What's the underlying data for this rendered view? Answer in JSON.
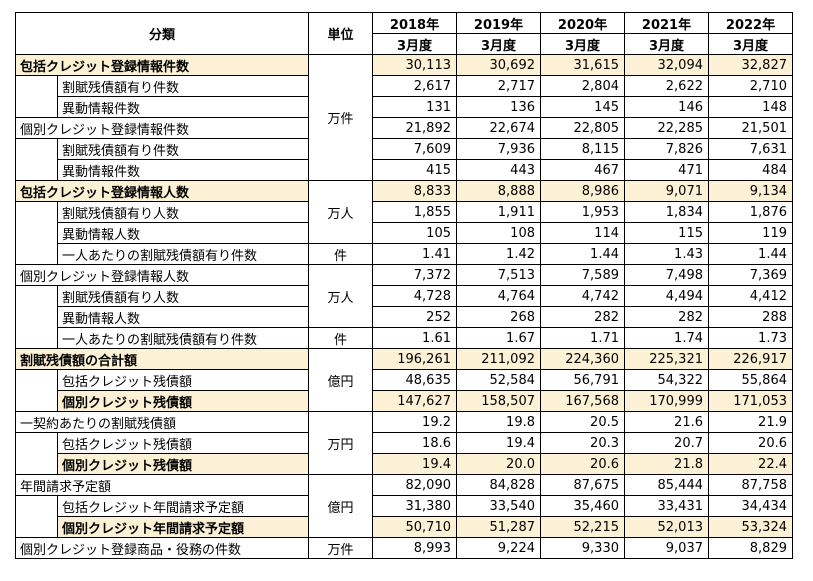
{
  "header": {
    "category": "分類",
    "unit": "単位",
    "years": [
      "2018年",
      "2019年",
      "2020年",
      "2021年",
      "2022年"
    ],
    "period": "3月度"
  },
  "rows": [
    {
      "label": "包括クレジット登録情報件数",
      "level": 0,
      "bold": true,
      "highlight": true,
      "values": [
        "30,113",
        "30,692",
        "31,615",
        "32,094",
        "32,827"
      ]
    },
    {
      "label": "割賦残債額有り件数",
      "level": 1,
      "bold": false,
      "highlight": false,
      "values": [
        "2,617",
        "2,717",
        "2,804",
        "2,622",
        "2,710"
      ]
    },
    {
      "label": "異動情報件数",
      "level": 1,
      "bold": false,
      "highlight": false,
      "values": [
        "131",
        "136",
        "145",
        "146",
        "148"
      ]
    },
    {
      "label": "個別クレジット登録情報件数",
      "level": 0,
      "bold": false,
      "highlight": false,
      "values": [
        "21,892",
        "22,674",
        "22,805",
        "22,285",
        "21,501"
      ]
    },
    {
      "label": "割賦残債額有り件数",
      "level": 1,
      "bold": false,
      "highlight": false,
      "values": [
        "7,609",
        "7,936",
        "8,115",
        "7,826",
        "7,631"
      ]
    },
    {
      "label": "異動情報件数",
      "level": 1,
      "bold": false,
      "highlight": false,
      "values": [
        "415",
        "443",
        "467",
        "471",
        "484"
      ]
    },
    {
      "label": "包括クレジット登録情報人数",
      "level": 0,
      "bold": true,
      "highlight": true,
      "values": [
        "8,833",
        "8,888",
        "8,986",
        "9,071",
        "9,134"
      ]
    },
    {
      "label": "割賦残債額有り人数",
      "level": 1,
      "bold": false,
      "highlight": false,
      "values": [
        "1,855",
        "1,911",
        "1,953",
        "1,834",
        "1,876"
      ]
    },
    {
      "label": "異動情報人数",
      "level": 1,
      "bold": false,
      "highlight": false,
      "values": [
        "105",
        "108",
        "114",
        "115",
        "119"
      ]
    },
    {
      "label": "一人あたりの割賦残債額有り件数",
      "level": 1,
      "bold": false,
      "highlight": false,
      "values": [
        "1.41",
        "1.42",
        "1.44",
        "1.43",
        "1.44"
      ]
    },
    {
      "label": "個別クレジット登録情報人数",
      "level": 0,
      "bold": false,
      "highlight": false,
      "values": [
        "7,372",
        "7,513",
        "7,589",
        "7,498",
        "7,369"
      ]
    },
    {
      "label": "割賦残債額有り人数",
      "level": 1,
      "bold": false,
      "highlight": false,
      "values": [
        "4,728",
        "4,764",
        "4,742",
        "4,494",
        "4,412"
      ]
    },
    {
      "label": "異動情報人数",
      "level": 1,
      "bold": false,
      "highlight": false,
      "values": [
        "252",
        "268",
        "282",
        "282",
        "288"
      ]
    },
    {
      "label": "一人あたりの割賦残債額有り件数",
      "level": 1,
      "bold": false,
      "highlight": false,
      "values": [
        "1.61",
        "1.67",
        "1.71",
        "1.74",
        "1.73"
      ]
    },
    {
      "label": "割賦残債額の合計額",
      "level": 0,
      "bold": true,
      "highlight": true,
      "values": [
        "196,261",
        "211,092",
        "224,360",
        "225,321",
        "226,917"
      ]
    },
    {
      "label": "包括クレジット残債額",
      "level": 1,
      "bold": false,
      "highlight": false,
      "values": [
        "48,635",
        "52,584",
        "56,791",
        "54,322",
        "55,864"
      ]
    },
    {
      "label": "個別クレジット残債額",
      "level": 1,
      "bold": true,
      "highlight": true,
      "values": [
        "147,627",
        "158,507",
        "167,568",
        "170,999",
        "171,053"
      ]
    },
    {
      "label": "一契約あたりの割賦残債額",
      "level": 0,
      "bold": false,
      "highlight": false,
      "values": [
        "19.2",
        "19.8",
        "20.5",
        "21.6",
        "21.9"
      ]
    },
    {
      "label": "包括クレジット残債額",
      "level": 1,
      "bold": false,
      "highlight": false,
      "values": [
        "18.6",
        "19.4",
        "20.3",
        "20.7",
        "20.6"
      ]
    },
    {
      "label": "個別クレジット残債額",
      "level": 1,
      "bold": true,
      "highlight": true,
      "values": [
        "19.4",
        "20.0",
        "20.6",
        "21.8",
        "22.4"
      ]
    },
    {
      "label": "年間請求予定額",
      "level": 0,
      "bold": false,
      "highlight": false,
      "values": [
        "82,090",
        "84,828",
        "87,675",
        "85,444",
        "87,758"
      ]
    },
    {
      "label": "包括クレジット年間請求予定額",
      "level": 1,
      "bold": false,
      "highlight": false,
      "values": [
        "31,380",
        "33,540",
        "35,460",
        "33,431",
        "34,434"
      ]
    },
    {
      "label": "個別クレジット年間請求予定額",
      "level": 1,
      "bold": true,
      "highlight": true,
      "values": [
        "50,710",
        "51,287",
        "52,215",
        "52,013",
        "53,324"
      ]
    },
    {
      "label": "個別クレジット登録商品・役務の件数",
      "level": 0,
      "bold": false,
      "highlight": false,
      "values": [
        "8,993",
        "9,224",
        "9,330",
        "9,037",
        "8,829"
      ]
    }
  ],
  "units": [
    {
      "start": 0,
      "span": 6,
      "text": "万件"
    },
    {
      "start": 6,
      "span": 3,
      "text": "万人"
    },
    {
      "start": 9,
      "span": 1,
      "text": "件"
    },
    {
      "start": 10,
      "span": 3,
      "text": "万人"
    },
    {
      "start": 13,
      "span": 1,
      "text": "件"
    },
    {
      "start": 14,
      "span": 3,
      "text": "億円"
    },
    {
      "start": 17,
      "span": 3,
      "text": "万円"
    },
    {
      "start": 20,
      "span": 3,
      "text": "億円"
    },
    {
      "start": 23,
      "span": 1,
      "text": "万件"
    }
  ]
}
